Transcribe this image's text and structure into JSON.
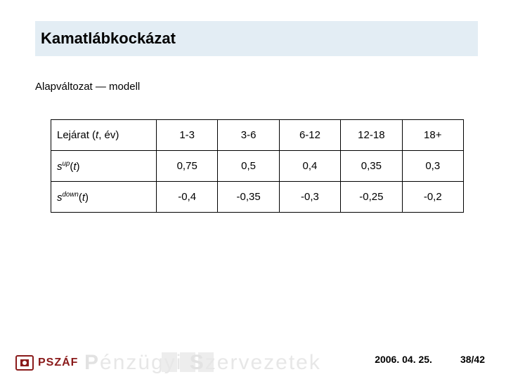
{
  "title": "Kamatlábkockázat",
  "subtitle": "Alapváltozat — modell",
  "table": {
    "type": "table",
    "border_color": "#000000",
    "cell_fontsize": 15,
    "columns_label_html": "Lejárat (<span class='italic'>t</span>, év)",
    "row_labels_html": [
      "<span class='italic'>s</span><sup>up</sup>(<span class='italic'>t</span>)",
      "<span class='italic'>s</span><sup>down</sup>(<span class='italic'>t</span>)"
    ],
    "columns": [
      "1-3",
      "3-6",
      "6-12",
      "12-18",
      "18+"
    ],
    "rows": [
      [
        "0,75",
        "0,5",
        "0,4",
        "0,35",
        "0,3"
      ],
      [
        "-0,4",
        "-0,35",
        "-0,3",
        "-0,25",
        "-0,2"
      ]
    ]
  },
  "footer": {
    "logo_text": "PSZÁF",
    "logo_color": "#8a1a1a",
    "watermark_text_parts": [
      "P",
      "énzügyi ",
      "S",
      "zervezetek"
    ],
    "date": "2006. 04. 25.",
    "page": "38/42"
  },
  "colors": {
    "title_bg": "#e3edf4",
    "background": "#ffffff",
    "watermark": "#e7e7e7"
  }
}
